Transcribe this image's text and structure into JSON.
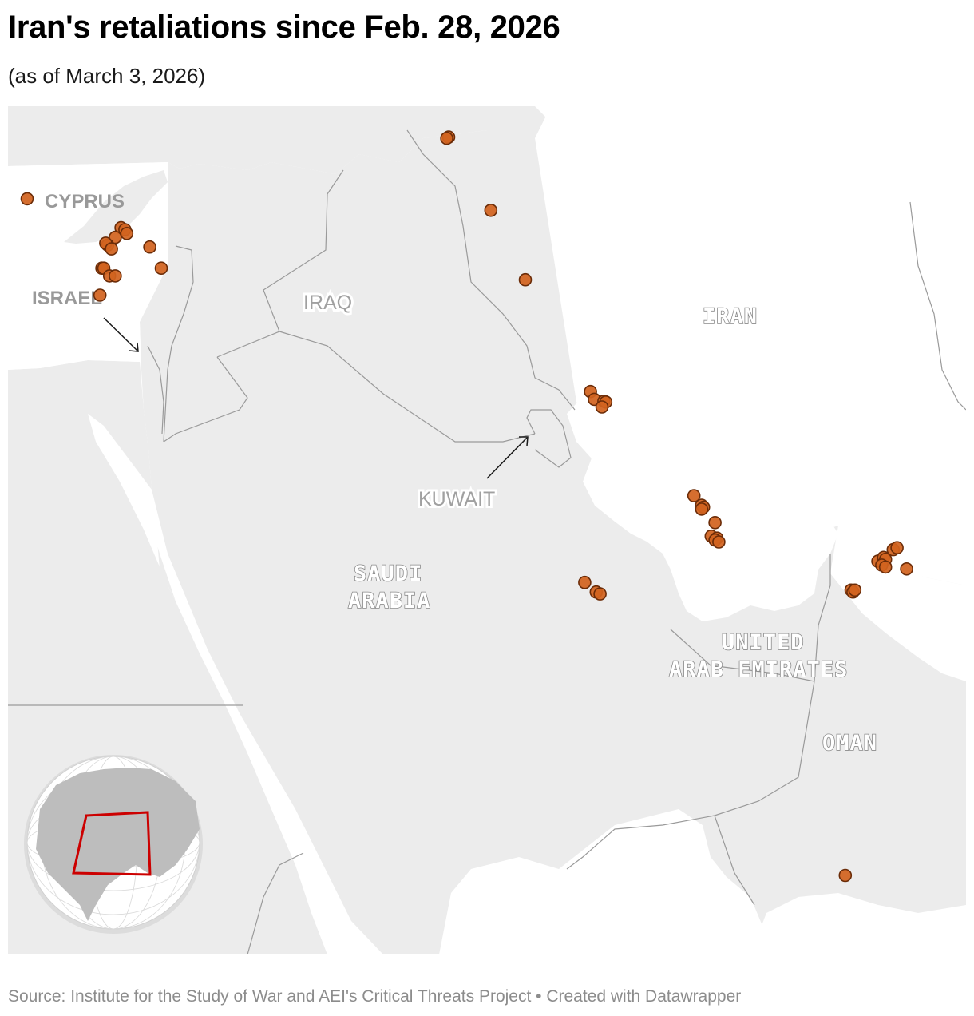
{
  "title": "Iran's retaliations since Feb. 28, 2026",
  "subtitle": "(as of March 3, 2026)",
  "source": "Source: Institute for the Study of War and AEI's Critical Threats Project • Created with Datawrapper",
  "colors": {
    "land": "#ececec",
    "water": "#ffffff",
    "border": "#9a9a9a",
    "marker": "#d2631f",
    "marker_stroke": "#6b2c08",
    "inset_frame": "#cc0000"
  },
  "labels": {
    "cyprus": "CYPRUS",
    "israel": "ISRAEL",
    "iraq": "IRAQ",
    "iran": "IRAN",
    "kuwait": "KUWAIT",
    "saudi_1": "SAUDI",
    "saudi_2": "ARABIA",
    "uae_1": "UNITED",
    "uae_2": "ARAB EMIRATES",
    "oman": "OMAN"
  },
  "attack_locations": [
    {
      "lon": 33.0,
      "lat": 34.6
    },
    {
      "lon": 35.45,
      "lat": 33.85
    },
    {
      "lon": 35.55,
      "lat": 33.8
    },
    {
      "lon": 35.6,
      "lat": 33.7
    },
    {
      "lon": 35.3,
      "lat": 33.6
    },
    {
      "lon": 35.1,
      "lat": 33.4
    },
    {
      "lon": 35.05,
      "lat": 33.45
    },
    {
      "lon": 35.2,
      "lat": 33.3
    },
    {
      "lon": 34.95,
      "lat": 32.8
    },
    {
      "lon": 35.0,
      "lat": 32.8
    },
    {
      "lon": 35.15,
      "lat": 32.6
    },
    {
      "lon": 35.3,
      "lat": 32.6
    },
    {
      "lon": 34.9,
      "lat": 32.1
    },
    {
      "lon": 36.2,
      "lat": 33.35
    },
    {
      "lon": 36.5,
      "lat": 32.8
    },
    {
      "lon": 44.0,
      "lat": 36.2
    },
    {
      "lon": 43.95,
      "lat": 36.17
    },
    {
      "lon": 45.1,
      "lat": 34.3
    },
    {
      "lon": 46.0,
      "lat": 32.5
    },
    {
      "lon": 47.7,
      "lat": 29.6
    },
    {
      "lon": 47.8,
      "lat": 29.4
    },
    {
      "lon": 48.05,
      "lat": 29.35
    },
    {
      "lon": 48.1,
      "lat": 29.33
    },
    {
      "lon": 48.0,
      "lat": 29.2
    },
    {
      "lon": 50.4,
      "lat": 26.9
    },
    {
      "lon": 50.6,
      "lat": 26.65
    },
    {
      "lon": 50.65,
      "lat": 26.6
    },
    {
      "lon": 50.6,
      "lat": 26.55
    },
    {
      "lon": 50.95,
      "lat": 26.2
    },
    {
      "lon": 50.85,
      "lat": 25.85
    },
    {
      "lon": 51.0,
      "lat": 25.8
    },
    {
      "lon": 50.95,
      "lat": 25.75
    },
    {
      "lon": 51.05,
      "lat": 25.7
    },
    {
      "lon": 47.55,
      "lat": 24.65
    },
    {
      "lon": 47.85,
      "lat": 24.4
    },
    {
      "lon": 47.95,
      "lat": 24.35
    },
    {
      "lon": 54.5,
      "lat": 24.45
    },
    {
      "lon": 54.55,
      "lat": 24.4
    },
    {
      "lon": 54.6,
      "lat": 24.45
    },
    {
      "lon": 55.2,
      "lat": 25.2
    },
    {
      "lon": 55.35,
      "lat": 25.3
    },
    {
      "lon": 55.4,
      "lat": 25.25
    },
    {
      "lon": 55.3,
      "lat": 25.1
    },
    {
      "lon": 55.4,
      "lat": 25.05
    },
    {
      "lon": 55.6,
      "lat": 25.5
    },
    {
      "lon": 55.7,
      "lat": 25.55
    },
    {
      "lon": 55.95,
      "lat": 25.0
    },
    {
      "lon": 58.6,
      "lat": 23.55
    },
    {
      "lon": 54.35,
      "lat": 17.05
    }
  ]
}
